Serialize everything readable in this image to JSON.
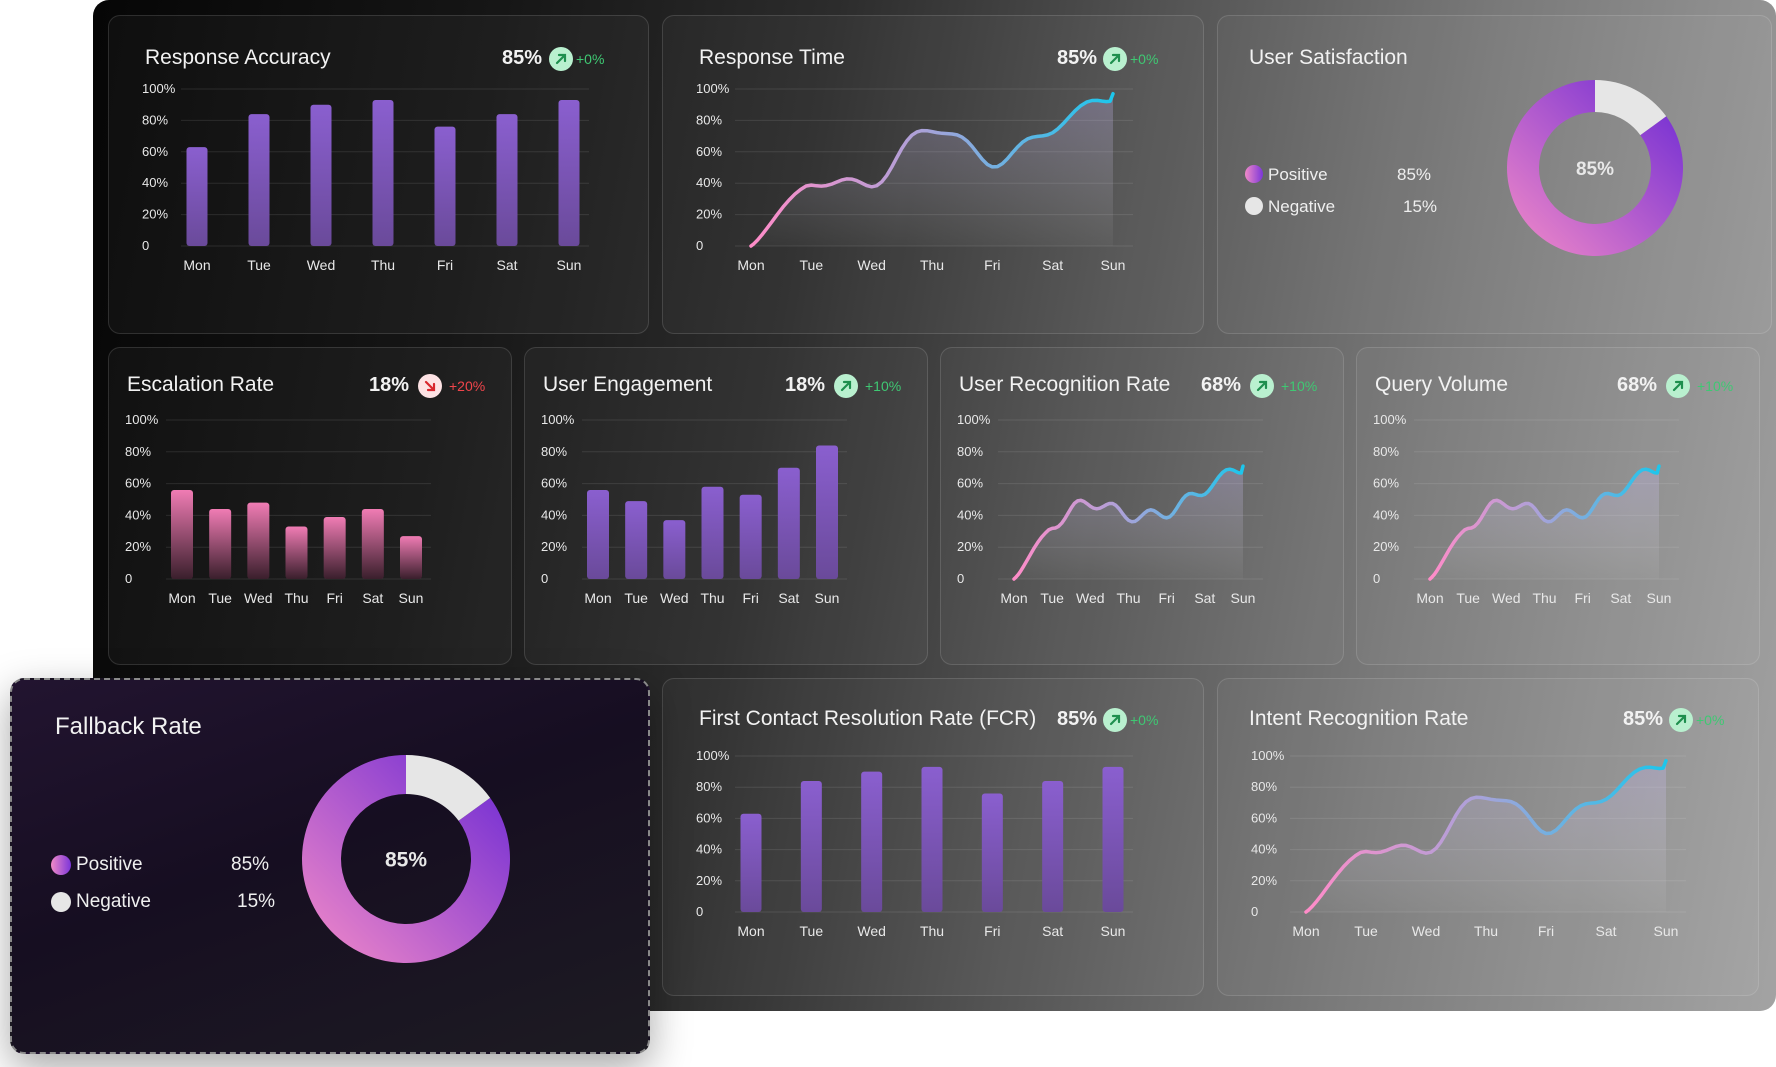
{
  "colors": {
    "up": "#3fc873",
    "down": "#f0454b",
    "bar_purple": "#8a5fcf",
    "bar_pink": "#f07cb4",
    "line_start": "#ff8cc8",
    "line_end": "#1cc6ec",
    "donut_pink": "#f48bc8",
    "donut_purple": "#6a28d4",
    "donut_gray": "#e6e6e6"
  },
  "panels": {
    "response_accuracy": {
      "title": "Response Accuracy",
      "value": "85%",
      "trend": "arrow-up-right-icon",
      "change": "+0%"
    },
    "response_time": {
      "title": "Response Time",
      "value": "85%",
      "trend": "arrow-up-right-icon",
      "change": "+0%"
    },
    "user_satisfaction": {
      "title": "User Satisfaction",
      "center": "85%",
      "legend": [
        {
          "label": "Positive",
          "value": "85%"
        },
        {
          "label": "Negative",
          "value": "15%"
        }
      ]
    },
    "escalation_rate": {
      "title": "Escalation Rate",
      "value": "18%",
      "trend": "arrow-down-right-icon",
      "change": "+20%"
    },
    "user_engagement": {
      "title": "User Engagement",
      "value": "18%",
      "trend": "arrow-up-right-icon",
      "change": "+10%"
    },
    "user_recognition_rate": {
      "title": "User Recognition Rate",
      "value": "68%",
      "trend": "arrow-up-right-icon",
      "change": "+10%"
    },
    "query_volume": {
      "title": "Query Volume",
      "value": "68%",
      "trend": "arrow-up-right-icon",
      "change": "+10%"
    },
    "fcr": {
      "title": "First Contact Resolution Rate (FCR)",
      "value": "85%",
      "trend": "arrow-up-right-icon",
      "change": "+0%"
    },
    "intent_recognition_rate": {
      "title": "Intent Recognition Rate",
      "value": "85%",
      "trend": "arrow-up-right-icon",
      "change": "+0%"
    },
    "fallback_rate": {
      "title": "Fallback Rate",
      "center": "85%",
      "legend": [
        {
          "label": "Positive",
          "value": "85%"
        },
        {
          "label": "Negative",
          "value": "15%"
        }
      ]
    }
  },
  "chart_data": [
    {
      "id": "response_accuracy",
      "type": "bar",
      "categories": [
        "Mon",
        "Tue",
        "Wed",
        "Thu",
        "Fri",
        "Sat",
        "Sun"
      ],
      "values": [
        63,
        84,
        90,
        93,
        76,
        84,
        93
      ],
      "ylim": [
        0,
        100
      ],
      "yticks": [
        "0",
        "20%",
        "40%",
        "60%",
        "80%",
        "100%"
      ]
    },
    {
      "id": "response_time",
      "type": "area",
      "categories": [
        "Mon",
        "Tue",
        "Wed",
        "Thu",
        "Fri",
        "Sat",
        "Sun"
      ],
      "values": [
        0,
        40,
        40,
        76,
        54,
        76,
        97
      ],
      "ylim": [
        0,
        100
      ],
      "yticks": [
        "0",
        "20%",
        "40%",
        "60%",
        "80%",
        "100%"
      ]
    },
    {
      "id": "user_satisfaction",
      "type": "pie",
      "labels": [
        "Positive",
        "Negative"
      ],
      "values": [
        85,
        15
      ]
    },
    {
      "id": "escalation_rate",
      "type": "bar",
      "categories": [
        "Mon",
        "Tue",
        "Wed",
        "Thu",
        "Fri",
        "Sat",
        "Sun"
      ],
      "values": [
        56,
        44,
        48,
        33,
        39,
        44,
        27
      ],
      "ylim": [
        0,
        100
      ],
      "yticks": [
        "0",
        "20%",
        "40%",
        "60%",
        "80%",
        "100%"
      ]
    },
    {
      "id": "user_engagement",
      "type": "bar",
      "categories": [
        "Mon",
        "Tue",
        "Wed",
        "Thu",
        "Fri",
        "Sat",
        "Sun"
      ],
      "values": [
        56,
        49,
        37,
        58,
        53,
        70,
        84
      ],
      "ylim": [
        0,
        100
      ],
      "yticks": [
        "0",
        "20%",
        "40%",
        "60%",
        "80%",
        "100%"
      ]
    },
    {
      "id": "user_recognition_rate",
      "type": "area",
      "categories": [
        "Mon",
        "Tue",
        "Wed",
        "Thu",
        "Fri",
        "Sat",
        "Sun"
      ],
      "values": [
        0,
        33,
        48,
        40,
        42,
        57,
        71
      ],
      "ylim": [
        0,
        100
      ],
      "yticks": [
        "0",
        "20%",
        "40%",
        "60%",
        "80%",
        "100%"
      ]
    },
    {
      "id": "query_volume",
      "type": "area",
      "categories": [
        "Mon",
        "Tue",
        "Wed",
        "Thu",
        "Fri",
        "Sat",
        "Sun"
      ],
      "values": [
        0,
        33,
        48,
        40,
        42,
        57,
        71
      ],
      "ylim": [
        0,
        100
      ],
      "yticks": [
        "0",
        "20%",
        "40%",
        "60%",
        "80%",
        "100%"
      ]
    },
    {
      "id": "fcr",
      "type": "bar",
      "categories": [
        "Mon",
        "Tue",
        "Wed",
        "Thu",
        "Fri",
        "Sat",
        "Sun"
      ],
      "values": [
        63,
        84,
        90,
        93,
        76,
        84,
        93
      ],
      "ylim": [
        0,
        100
      ],
      "yticks": [
        "0",
        "20%",
        "40%",
        "60%",
        "80%",
        "100%"
      ]
    },
    {
      "id": "intent_recognition_rate",
      "type": "area",
      "categories": [
        "Mon",
        "Tue",
        "Wed",
        "Thu",
        "Fri",
        "Sat",
        "Sun"
      ],
      "values": [
        0,
        40,
        40,
        76,
        54,
        76,
        97
      ],
      "ylim": [
        0,
        100
      ],
      "yticks": [
        "0",
        "20%",
        "40%",
        "60%",
        "80%",
        "100%"
      ]
    },
    {
      "id": "fallback_rate",
      "type": "pie",
      "labels": [
        "Positive",
        "Negative"
      ],
      "values": [
        85,
        15
      ]
    }
  ]
}
